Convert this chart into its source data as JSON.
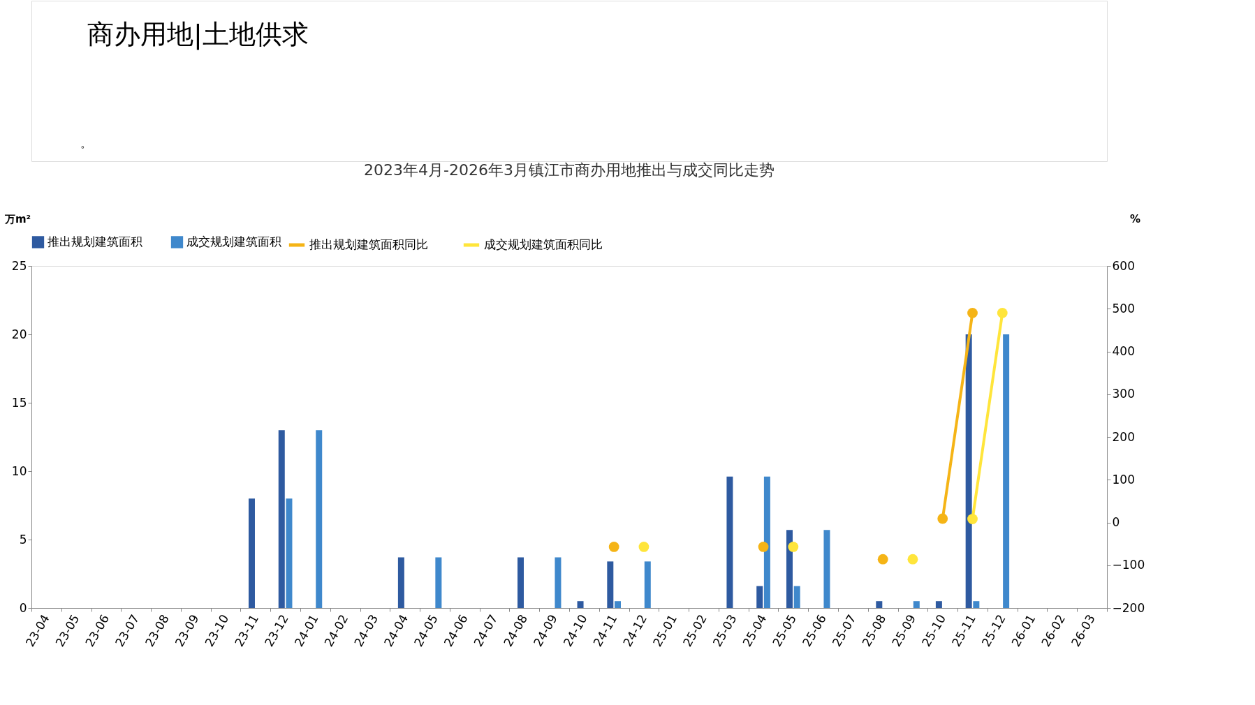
{
  "chart_data": {
    "type": "bar",
    "title": "2023年4月-2026年3月镇江市商办用地推出与成交同比走势",
    "annotations": [
      "商办用地|土地供求",
      "。"
    ],
    "ylabel": "万m²",
    "y2label": "%",
    "categories": [
      "23-04",
      "23-05",
      "23-06",
      "23-07",
      "23-08",
      "23-09",
      "23-10",
      "23-11",
      "23-12",
      "24-01",
      "24-02",
      "24-03",
      "24-04",
      "24-05",
      "24-06",
      "24-07",
      "24-08",
      "24-09",
      "24-10",
      "24-11",
      "24-12",
      "25-01",
      "25-02",
      "25-03",
      "25-04",
      "25-05",
      "25-06",
      "25-07",
      "25-08",
      "25-09",
      "25-10",
      "25-11",
      "25-12",
      "26-01",
      "26-02",
      "26-03"
    ],
    "series": [
      {
        "name": "推出规划建筑面积",
        "type": "bar",
        "color": "#2e5aa0",
        "values": [
          null,
          null,
          null,
          null,
          null,
          null,
          null,
          8.0,
          13.0,
          null,
          null,
          null,
          3.7,
          null,
          null,
          null,
          3.7,
          null,
          0.5,
          3.4,
          null,
          null,
          null,
          9.6,
          1.6,
          5.7,
          null,
          null,
          0.5,
          null,
          0.5,
          20.0,
          null,
          null,
          null,
          null
        ]
      },
      {
        "name": "成交规划建筑面积",
        "type": "bar",
        "color": "#3f88cc",
        "values": [
          null,
          null,
          null,
          null,
          null,
          null,
          null,
          null,
          8.0,
          13.0,
          null,
          null,
          null,
          3.7,
          null,
          null,
          null,
          3.7,
          null,
          0.5,
          3.4,
          null,
          null,
          null,
          9.6,
          1.6,
          5.7,
          null,
          null,
          0.5,
          null,
          0.5,
          20.0,
          null,
          null,
          null
        ]
      },
      {
        "name": "推出规划建筑面积同比",
        "type": "line",
        "axis": "y2",
        "color": "#f5b416",
        "values": [
          null,
          null,
          null,
          null,
          null,
          null,
          null,
          null,
          null,
          null,
          null,
          null,
          null,
          null,
          null,
          null,
          null,
          null,
          null,
          -57,
          null,
          null,
          null,
          null,
          -57,
          null,
          null,
          null,
          -86,
          null,
          9,
          490,
          null,
          null,
          null,
          null
        ]
      },
      {
        "name": "成交规划建筑面积同比",
        "type": "line",
        "axis": "y2",
        "color": "#ffe53b",
        "values": [
          null,
          null,
          null,
          null,
          null,
          null,
          null,
          null,
          null,
          null,
          null,
          null,
          null,
          null,
          null,
          null,
          null,
          null,
          null,
          null,
          -57,
          null,
          null,
          null,
          null,
          -57,
          null,
          null,
          null,
          -86,
          null,
          8,
          490,
          null,
          null,
          null
        ]
      }
    ],
    "ylim": [
      0,
      25
    ],
    "yticks": [
      0,
      5,
      10,
      15,
      20,
      25
    ],
    "y2lim": [
      -200,
      600
    ],
    "y2ticks": [
      -200,
      -100,
      0,
      100,
      200,
      300,
      400,
      500,
      600
    ],
    "legend": "top",
    "grid": false,
    "marker": "circle",
    "line_style": "solid"
  }
}
